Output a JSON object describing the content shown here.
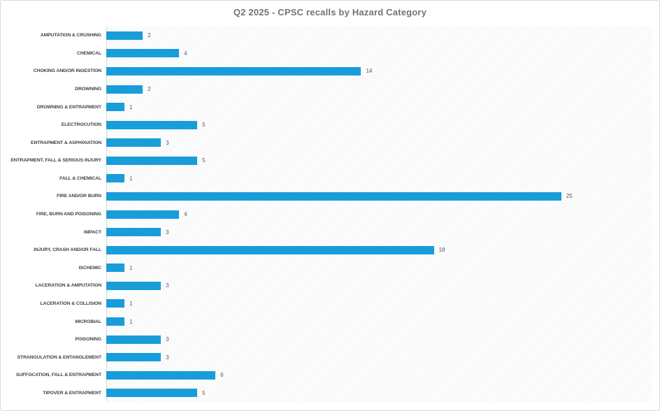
{
  "colors": {
    "bar": "#189dd9",
    "title": "#737373",
    "category_label": "#404040",
    "value_label": "#595959",
    "axis_line": "#d9d9d9",
    "border": "#d9d9d9",
    "hatch_line": "#f0f0f0",
    "background": "#ffffff"
  },
  "chart_data": {
    "type": "bar",
    "orientation": "horizontal",
    "title": "Q2 2025 - CPSC recalls by Hazard Category",
    "xlabel": "",
    "ylabel": "",
    "xlim": [
      0,
      30
    ],
    "grid": false,
    "legend": false,
    "data_labels": true,
    "plot_background": "light-diagonal-hatch",
    "categories": [
      "AMPUTATION & CRUSHING",
      "CHEMICAL",
      "CHOKING AND/OR INGESTION",
      "DROWNING",
      "DROWNING & ENTRAPMENT",
      "ELECTROCUTION",
      "ENTRAPMENT & ASPHIXIATION",
      "ENTRAPMENT, FALL & SERIOUS INJURY",
      "FALL & CHEMICAL",
      "FIRE AND/OR BURN",
      "FIRE, BURN AND POISONING",
      "IMPACT",
      "INJURY, CRASH AND/OR FALL",
      "ISCHEMIC",
      "LACERATION & AMPUTATION",
      "LACERATION & COLLISION",
      "MICROBIAL",
      "POISONING",
      "STRANGULATION & ENTANGLEMENT",
      "SUFFOCATION, FALL & ENTRAPMENT",
      "TIPOVER & ENTRAPMENT"
    ],
    "values": [
      2,
      4,
      14,
      2,
      1,
      5,
      3,
      5,
      1,
      25,
      4,
      3,
      18,
      1,
      3,
      1,
      1,
      3,
      3,
      6,
      5
    ]
  }
}
